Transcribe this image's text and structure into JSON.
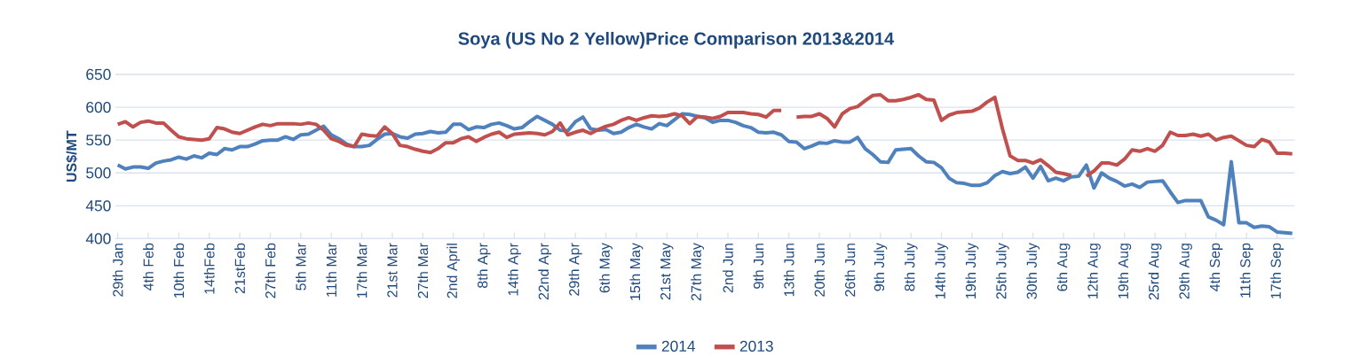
{
  "chart_data": {
    "type": "line",
    "title": "Soya (US No 2 Yellow)Price Comparison 2013&2014",
    "ylabel": "US$/MT",
    "categories": [
      "29th Jan",
      null,
      null,
      null,
      "4th Feb",
      null,
      null,
      null,
      "10th Feb",
      null,
      null,
      null,
      "14thFeb",
      null,
      null,
      null,
      "21stFeb",
      null,
      null,
      null,
      "27th Feb",
      null,
      null,
      null,
      "5th Mar",
      null,
      null,
      null,
      "11th Mar",
      null,
      null,
      null,
      "17th Mar",
      null,
      null,
      null,
      "21st Mar",
      null,
      null,
      null,
      "27th Mar",
      null,
      null,
      null,
      "2nd April",
      null,
      null,
      null,
      "8th Apr",
      null,
      null,
      null,
      "14th Apr",
      null,
      null,
      null,
      "22nd Apr",
      null,
      null,
      null,
      "29th Apr",
      null,
      null,
      null,
      "6th May",
      null,
      null,
      null,
      "15th May",
      null,
      null,
      null,
      "21st May",
      null,
      null,
      null,
      "27th May",
      null,
      null,
      null,
      "2nd Jun",
      null,
      null,
      null,
      "9th Jun",
      null,
      null,
      null,
      "13th Jun",
      null,
      null,
      null,
      "20th Jun",
      null,
      null,
      null,
      "26th Jun",
      null,
      null,
      null,
      "9th July",
      null,
      null,
      null,
      "8th July",
      null,
      null,
      null,
      "14th July",
      null,
      null,
      null,
      "19th July",
      null,
      null,
      null,
      "25th July",
      null,
      null,
      null,
      "30th July",
      null,
      null,
      null,
      "6th Aug",
      null,
      null,
      null,
      "12th Aug",
      null,
      null,
      null,
      "19th Aug",
      null,
      null,
      null,
      "25rd Aug",
      null,
      null,
      null,
      "29th Aug",
      null,
      null,
      null,
      "4th Sep",
      null,
      null,
      null,
      "11th Sep",
      null,
      null,
      null,
      "17th Sep",
      null,
      null
    ],
    "series": [
      {
        "name": "2014",
        "color": "#4f81bd",
        "values": [
          512,
          506,
          509,
          509,
          507,
          515,
          518,
          520,
          524,
          521,
          526,
          523,
          530,
          528,
          537,
          535,
          540,
          540,
          544,
          549,
          550,
          550,
          555,
          551,
          558,
          559,
          565,
          571,
          558,
          552,
          544,
          540,
          540,
          542,
          551,
          559,
          560,
          555,
          553,
          559,
          560,
          563,
          561,
          562,
          574,
          574,
          566,
          570,
          569,
          574,
          576,
          572,
          567,
          569,
          578,
          586,
          580,
          574,
          565,
          564,
          578,
          585,
          567,
          565,
          566,
          560,
          562,
          569,
          574,
          570,
          567,
          575,
          572,
          581,
          590,
          589,
          586,
          584,
          577,
          580,
          580,
          577,
          572,
          569,
          562,
          561,
          562,
          558,
          548,
          547,
          537,
          541,
          546,
          545,
          549,
          547,
          547,
          554,
          537,
          528,
          517,
          516,
          535,
          536,
          537,
          526,
          517,
          516,
          508,
          492,
          485,
          484,
          481,
          481,
          485,
          496,
          502,
          499,
          501,
          509,
          492,
          510,
          488,
          492,
          488,
          494,
          495,
          512,
          477,
          500,
          492,
          487,
          480,
          483,
          478,
          486,
          487,
          488,
          471,
          455,
          458,
          458,
          458,
          433,
          428,
          421,
          517,
          424,
          424,
          417,
          419,
          418,
          410,
          409,
          408
        ]
      },
      {
        "name": "2013",
        "color": "#c0504d",
        "values": [
          574,
          578,
          570,
          577,
          579,
          576,
          576,
          565,
          555,
          552,
          551,
          550,
          552,
          569,
          567,
          562,
          560,
          565,
          570,
          574,
          572,
          575,
          575,
          575,
          574,
          576,
          574,
          565,
          552,
          548,
          542,
          540,
          559,
          557,
          556,
          570,
          560,
          542,
          540,
          536,
          533,
          531,
          537,
          546,
          546,
          552,
          555,
          548,
          554,
          559,
          562,
          554,
          559,
          560,
          561,
          560,
          558,
          563,
          576,
          558,
          562,
          565,
          560,
          566,
          571,
          574,
          580,
          584,
          580,
          584,
          587,
          586,
          587,
          590,
          587,
          575,
          586,
          585,
          583,
          586,
          592,
          592,
          592,
          590,
          589,
          585,
          595,
          595,
          null,
          585,
          586,
          586,
          590,
          583,
          570,
          590,
          598,
          601,
          610,
          618,
          619,
          610,
          610,
          612,
          615,
          619,
          612,
          611,
          580,
          588,
          592,
          593,
          594,
          599,
          608,
          615,
          567,
          526,
          519,
          519,
          515,
          520,
          511,
          501,
          499,
          496,
          null,
          495,
          503,
          515,
          515,
          512,
          521,
          535,
          533,
          537,
          533,
          542,
          562,
          557,
          557,
          559,
          556,
          559,
          550,
          554,
          556,
          549,
          542,
          540,
          551,
          547,
          530,
          530,
          529
        ]
      }
    ],
    "ylim": [
      400,
      650
    ],
    "yticks": [
      400,
      450,
      500,
      550,
      600,
      650
    ],
    "grid": "y",
    "legend": "bottom"
  }
}
